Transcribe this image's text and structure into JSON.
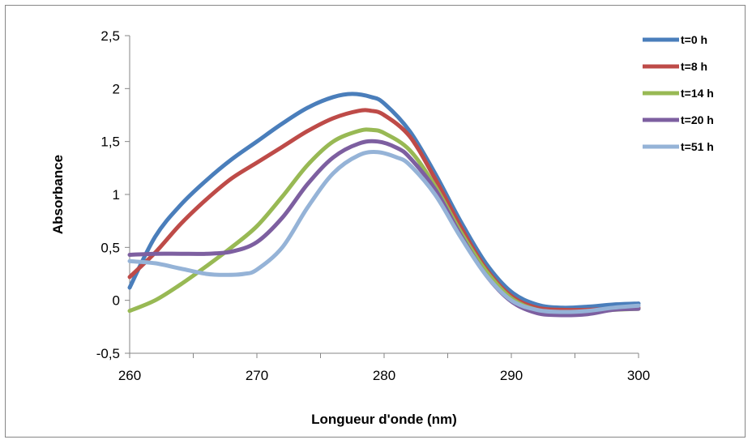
{
  "chart_data": {
    "type": "line",
    "title": "",
    "xlabel": "Longueur d'onde (nm)",
    "ylabel": "Absorbance",
    "xlim": [
      260,
      300
    ],
    "ylim": [
      -0.5,
      2.5
    ],
    "x_ticks": [
      260,
      270,
      280,
      290,
      300
    ],
    "x_tick_labels": [
      "260",
      "270",
      "280",
      "290",
      "300"
    ],
    "y_ticks": [
      -0.5,
      0,
      0.5,
      1,
      1.5,
      2,
      2.5
    ],
    "y_tick_labels": [
      "-0,5",
      "0",
      "0,5",
      "1",
      "1,5",
      "2",
      "2,5"
    ],
    "grid": false,
    "legend_position": "top-right",
    "series": [
      {
        "name": "t=0 h",
        "color": "#4A7EBB",
        "x": [
          260,
          262,
          264,
          266,
          268,
          270,
          272,
          274,
          276,
          277.5,
          279,
          280,
          282,
          284,
          286,
          288,
          290,
          292,
          294,
          296,
          298,
          300
        ],
        "y": [
          0.12,
          0.6,
          0.9,
          1.13,
          1.33,
          1.5,
          1.67,
          1.82,
          1.92,
          1.95,
          1.92,
          1.86,
          1.6,
          1.2,
          0.75,
          0.35,
          0.08,
          -0.04,
          -0.07,
          -0.06,
          -0.04,
          -0.03
        ]
      },
      {
        "name": "t=8 h",
        "color": "#BE4B48",
        "x": [
          260,
          262,
          264,
          266,
          268,
          270,
          272,
          274,
          276,
          278,
          279,
          280,
          282,
          284,
          286,
          288,
          290,
          292,
          294,
          296,
          298,
          300
        ],
        "y": [
          0.22,
          0.45,
          0.72,
          0.95,
          1.15,
          1.3,
          1.45,
          1.6,
          1.72,
          1.79,
          1.79,
          1.75,
          1.55,
          1.15,
          0.7,
          0.3,
          0.04,
          -0.07,
          -0.09,
          -0.09,
          -0.08,
          -0.07
        ]
      },
      {
        "name": "t=14 h",
        "color": "#98B954",
        "x": [
          260,
          262,
          264,
          266,
          268,
          270,
          272,
          274,
          276,
          278,
          279,
          280,
          282,
          284,
          286,
          288,
          290,
          292,
          294,
          296,
          298,
          300
        ],
        "y": [
          -0.1,
          0.0,
          0.15,
          0.32,
          0.5,
          0.7,
          0.98,
          1.28,
          1.5,
          1.6,
          1.61,
          1.58,
          1.42,
          1.08,
          0.65,
          0.28,
          0.02,
          -0.09,
          -0.12,
          -0.11,
          -0.09,
          -0.08
        ]
      },
      {
        "name": "t=20 h",
        "color": "#7D5FA0",
        "x": [
          260,
          262,
          264,
          266,
          268,
          270,
          272,
          274,
          276,
          278,
          279.5,
          281,
          282,
          284,
          286,
          288,
          290,
          292,
          294,
          296,
          298,
          300
        ],
        "y": [
          0.43,
          0.44,
          0.44,
          0.44,
          0.46,
          0.55,
          0.78,
          1.1,
          1.35,
          1.48,
          1.5,
          1.44,
          1.35,
          1.05,
          0.62,
          0.24,
          -0.01,
          -0.12,
          -0.14,
          -0.13,
          -0.09,
          -0.08
        ]
      },
      {
        "name": "t=51 h",
        "color": "#95B3D7",
        "x": [
          260,
          262,
          264,
          266,
          267.5,
          269,
          270,
          272,
          274,
          276,
          278,
          279.5,
          281,
          282,
          284,
          286,
          288,
          290,
          292,
          294,
          296,
          298,
          300
        ],
        "y": [
          0.37,
          0.35,
          0.3,
          0.25,
          0.24,
          0.25,
          0.29,
          0.5,
          0.88,
          1.2,
          1.37,
          1.4,
          1.35,
          1.28,
          1.0,
          0.6,
          0.24,
          0.0,
          -0.09,
          -0.11,
          -0.1,
          -0.07,
          -0.05
        ]
      }
    ]
  }
}
